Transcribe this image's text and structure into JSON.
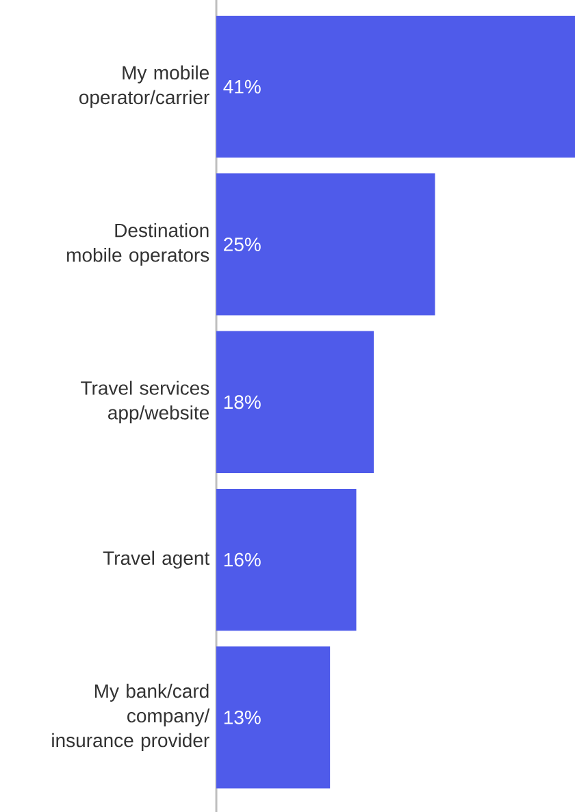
{
  "chart_data": {
    "type": "bar",
    "orientation": "horizontal",
    "categories": [
      "My mobile operator/carrier",
      "Destination mobile operators",
      "Travel services app/website",
      "Travel agent",
      "My bank/card company/ insurance provider"
    ],
    "values": [
      41,
      25,
      18,
      16,
      13
    ],
    "value_labels": [
      "41%",
      "25%",
      "18%",
      "16%",
      "13%"
    ],
    "color": "#4f5bea",
    "xlim": [
      0,
      41
    ]
  }
}
